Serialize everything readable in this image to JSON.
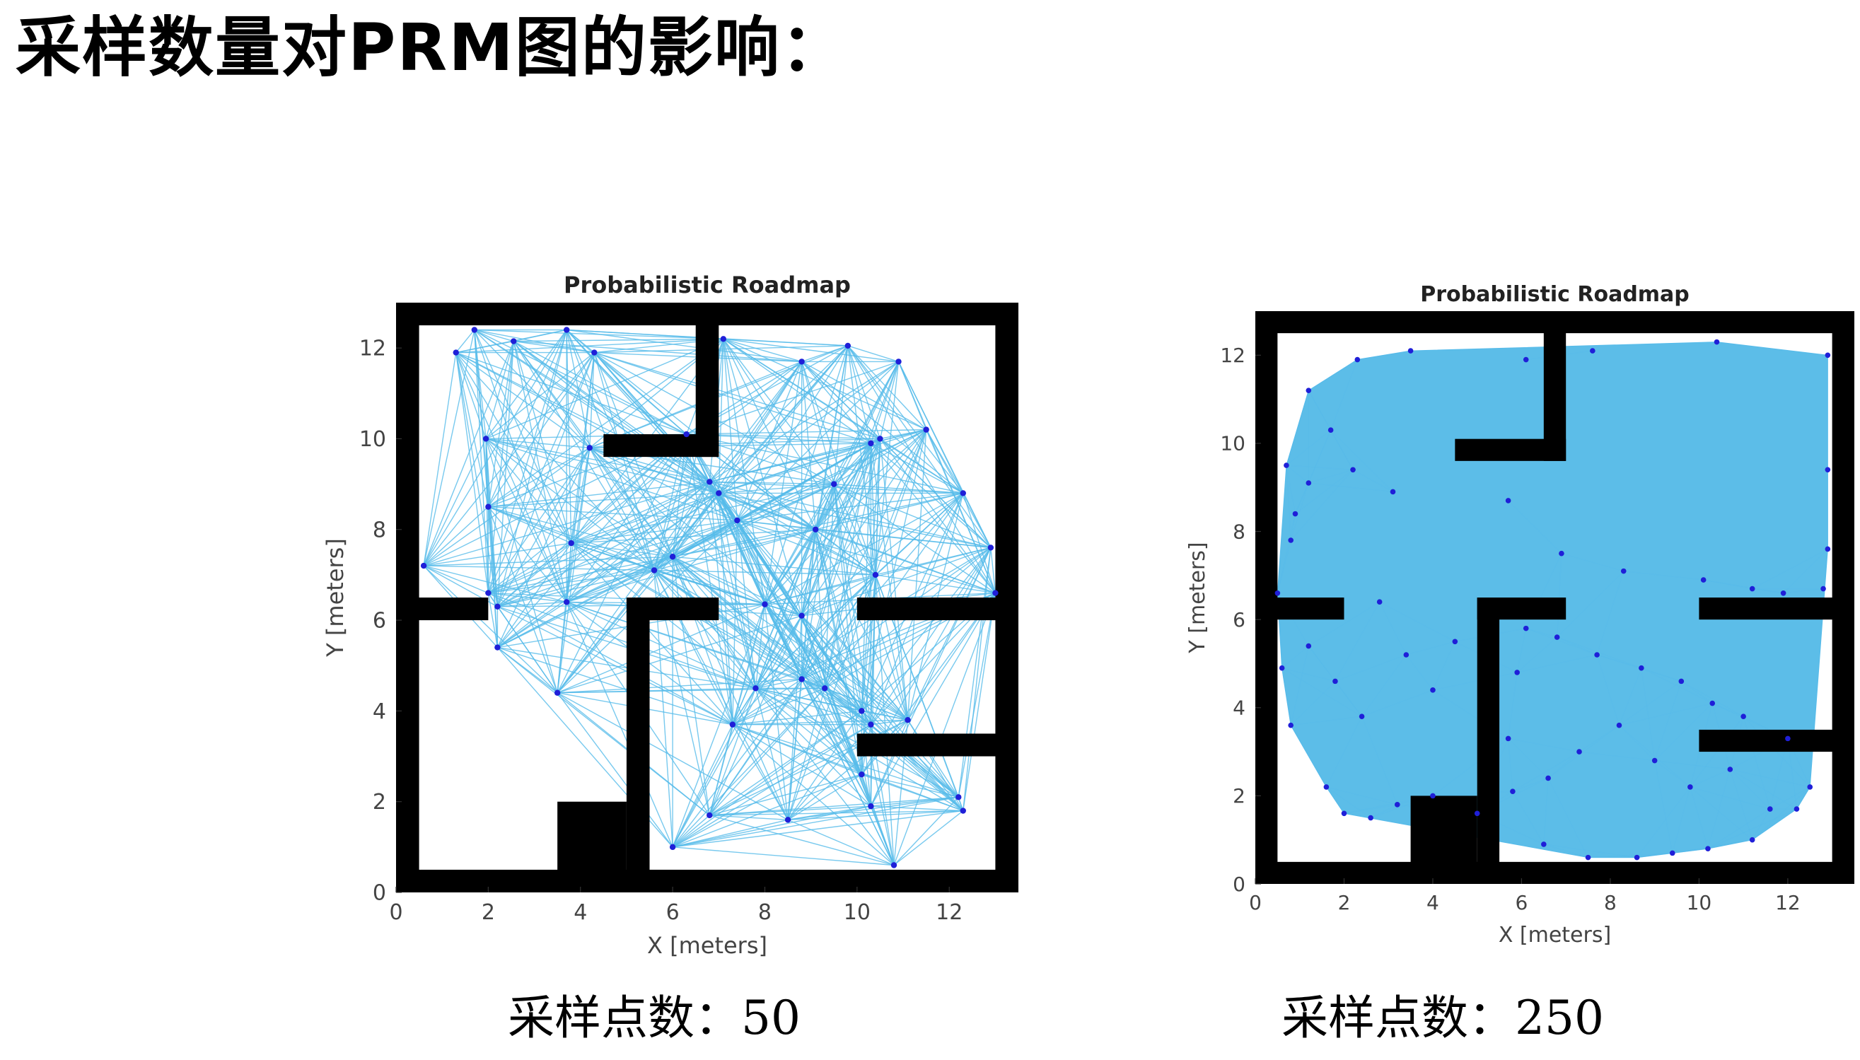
{
  "slide": {
    "title": "采样数量对PRM图的影响：",
    "captions": [
      "采样点数：50",
      "采样点数：250"
    ]
  },
  "colors": {
    "edge": "#56bbea",
    "node": "#1f1fd8",
    "obstacle": "#000000",
    "fill_dense": "#5cbde8"
  },
  "chart_data": [
    {
      "type": "scatter",
      "title": "Probabilistic Roadmap",
      "xlabel": "X [meters]",
      "ylabel": "Y [meters]",
      "xlim": [
        0,
        13.5
      ],
      "ylim": [
        0,
        13
      ],
      "xticks": [
        0,
        2,
        4,
        6,
        8,
        10,
        12
      ],
      "yticks": [
        0,
        2,
        4,
        6,
        8,
        10,
        12
      ],
      "num_samples": 50,
      "series": [
        {
          "x": [
            0.6,
            1.3,
            1.7,
            1.95,
            2.55,
            3.7,
            4.2,
            4.3,
            3.8,
            6.3,
            2.0,
            2.2,
            2.2,
            3.5,
            2.0,
            3.7,
            5.6,
            6.0,
            7.0,
            6.8,
            7.1,
            7.4,
            8.0,
            8.8,
            9.1,
            8.8,
            9.8,
            10.3,
            10.9,
            10.5,
            11.5,
            12.3,
            12.9,
            13.0,
            10.4,
            9.5,
            8.8,
            7.8,
            7.3,
            9.3,
            10.1,
            10.3,
            10.1,
            11.1,
            12.2,
            12.3,
            10.3,
            10.8,
            8.5,
            6.0,
            6.8
          ],
          "y": [
            7.2,
            11.9,
            12.4,
            10.0,
            12.15,
            12.4,
            9.8,
            11.9,
            7.7,
            10.1,
            8.5,
            6.3,
            5.4,
            4.4,
            6.6,
            6.4,
            7.1,
            7.4,
            8.8,
            9.05,
            12.2,
            8.2,
            6.35,
            6.1,
            8.0,
            11.7,
            12.05,
            9.9,
            11.7,
            10.0,
            10.2,
            8.8,
            7.6,
            6.6,
            7.0,
            9.0,
            4.7,
            4.5,
            3.7,
            4.5,
            4.0,
            3.7,
            2.6,
            3.8,
            2.1,
            1.8,
            1.9,
            0.6,
            1.6,
            1.0,
            1.7
          ]
        }
      ]
    },
    {
      "type": "scatter",
      "title": "Probabilistic Roadmap",
      "xlabel": "X [meters]",
      "ylabel": "Y [meters]",
      "xlim": [
        0,
        13.5
      ],
      "ylim": [
        0,
        13
      ],
      "xticks": [
        0,
        2,
        4,
        6,
        8,
        10,
        12
      ],
      "yticks": [
        0,
        2,
        4,
        6,
        8,
        10,
        12
      ],
      "num_samples": 250,
      "series": [
        {
          "x": [
            0.7,
            0.9,
            1.2,
            2.3,
            3.5,
            6.1,
            7.6,
            10.4,
            12.9,
            12.9,
            12.9,
            12.8,
            11.9,
            11.2,
            10.1,
            8.3,
            6.9,
            5.7,
            3.1,
            2.2,
            1.2,
            0.8,
            0.5,
            0.6,
            0.8,
            1.6,
            2.0,
            2.6,
            3.2,
            4.0,
            5.0,
            6.5,
            7.5,
            8.6,
            9.4,
            10.2,
            11.2,
            12.2,
            12.5,
            12.0,
            11.0,
            10.3,
            9.6,
            8.7,
            7.7,
            6.8,
            6.1,
            5.9,
            5.7,
            5.8,
            6.6,
            7.3,
            8.2,
            9.0,
            9.8,
            10.7,
            11.6,
            1.2,
            1.8,
            2.4,
            3.4,
            4.0,
            4.5,
            2.8,
            1.7
          ],
          "y": [
            9.5,
            8.4,
            11.2,
            11.9,
            12.1,
            11.9,
            12.1,
            12.3,
            12.0,
            9.4,
            7.6,
            6.7,
            6.6,
            6.7,
            6.9,
            7.1,
            7.5,
            8.7,
            8.9,
            9.4,
            9.1,
            7.8,
            6.6,
            4.9,
            3.6,
            2.2,
            1.6,
            1.5,
            1.8,
            2.0,
            1.6,
            0.9,
            0.6,
            0.6,
            0.7,
            0.8,
            1.0,
            1.7,
            2.2,
            3.3,
            3.8,
            4.1,
            4.6,
            4.9,
            5.2,
            5.6,
            5.8,
            4.8,
            3.3,
            2.1,
            2.4,
            3.0,
            3.6,
            2.8,
            2.2,
            2.6,
            1.7,
            5.4,
            4.6,
            3.8,
            5.2,
            4.4,
            5.5,
            6.4,
            10.3
          ]
        }
      ]
    }
  ]
}
